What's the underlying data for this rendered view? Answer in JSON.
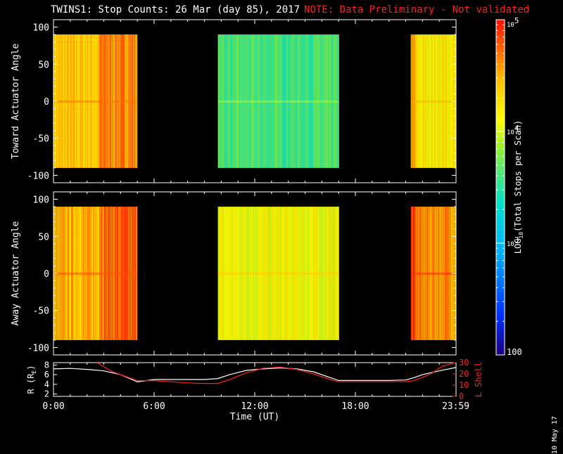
{
  "header": {
    "title": "TWINS1: Stop Counts: 26 Mar (day  85), 2017",
    "note": "NOTE: Data Preliminary - Not validated"
  },
  "footer_date": "10 May 17",
  "colors": {
    "background": "#000000",
    "axis": "#ffffff",
    "note": "#ff2020",
    "l_shell": "#ff2020",
    "radius": "#ffffff"
  },
  "chart_data": [
    {
      "type": "heatmap",
      "name": "toward",
      "ylabel": "Toward Actuator Angle",
      "ylim": [
        -110,
        110
      ],
      "y_ticks": [
        100,
        50,
        0,
        -50,
        -100
      ],
      "xlim": [
        0,
        24
      ],
      "angle_range": [
        -90,
        90
      ],
      "colorscale": "log10",
      "data_segments": [
        {
          "x_start": 0.0,
          "x_end": 5.0,
          "level": 4.4
        },
        {
          "x_start": 9.8,
          "x_end": 17.0,
          "level": 3.6
        },
        {
          "x_start": 21.3,
          "x_end": 24.0,
          "level": 4.2
        }
      ]
    },
    {
      "type": "heatmap",
      "name": "away",
      "ylabel": "Away Actuator Angle",
      "ylim": [
        -110,
        110
      ],
      "y_ticks": [
        100,
        50,
        0,
        -50,
        -100
      ],
      "xlim": [
        0,
        24
      ],
      "angle_range": [
        -90,
        90
      ],
      "colorscale": "log10",
      "data_segments": [
        {
          "x_start": 0.0,
          "x_end": 5.0,
          "level": 4.5
        },
        {
          "x_start": 9.8,
          "x_end": 17.0,
          "level": 4.1
        },
        {
          "x_start": 21.3,
          "x_end": 24.0,
          "level": 4.6
        }
      ]
    },
    {
      "type": "line",
      "name": "ephemeris",
      "xlabel": "Time (UT)",
      "x_tick_labels": [
        "0:00",
        "6:00",
        "12:00",
        "18:00",
        "23:59"
      ],
      "x_ticks": [
        0,
        6,
        12,
        18,
        23.98
      ],
      "ylabel_left": "R (R",
      "ylabel_left_sub": "E",
      "ylabel_left_close": ")",
      "ylim_left": [
        1.5,
        8.5
      ],
      "y_ticks_left": [
        2,
        4,
        6,
        8
      ],
      "ylabel_right": "L Shell",
      "ylim_right": [
        0,
        30
      ],
      "y_ticks_right": [
        0,
        10,
        20,
        30
      ],
      "series": [
        {
          "axis": "left",
          "x": [
            0,
            1,
            2,
            3,
            4,
            5,
            6,
            7,
            8,
            9,
            9.8,
            10.5,
            11.5,
            12.5,
            13.5,
            14.5,
            15.5,
            16.5,
            17,
            18,
            19,
            20,
            21,
            21.5,
            22,
            23,
            24
          ],
          "y": [
            7.2,
            7.3,
            7.1,
            6.8,
            6.0,
            4.5,
            5.0,
            5.0,
            5.0,
            5.0,
            5.2,
            6.0,
            6.9,
            7.2,
            7.4,
            7.2,
            6.6,
            5.4,
            4.8,
            4.8,
            4.8,
            4.8,
            4.9,
            5.4,
            6.0,
            6.8,
            7.5
          ]
        },
        {
          "axis": "right",
          "x": [
            2.6,
            3.5,
            5.0,
            6.0,
            7.0,
            8.0,
            9.0,
            9.8,
            10.5,
            11.5,
            12.5,
            13.5,
            14.5,
            15.5,
            16.5,
            17,
            18,
            19,
            20,
            21,
            21.5,
            22.5,
            23.2,
            24
          ],
          "y": [
            30,
            22,
            14,
            14,
            13,
            12,
            11.5,
            11.5,
            15,
            21,
            25,
            26,
            24,
            20,
            15,
            13,
            13,
            13,
            13,
            13,
            14,
            20,
            27,
            30
          ]
        }
      ]
    },
    {
      "type": "colorbar",
      "label_pre": "LOG",
      "label_sub": "10",
      "label_post": "(Total Stops per Scan)",
      "range_log10": [
        2,
        5
      ],
      "tick_labels": [
        {
          "value": 5,
          "base": "10",
          "exp": "5"
        },
        {
          "value": 4,
          "base": "10",
          "exp": "4"
        },
        {
          "value": 3,
          "base": "10",
          "exp": "3"
        },
        {
          "value": 2,
          "base": "100",
          "exp": ""
        }
      ]
    }
  ]
}
